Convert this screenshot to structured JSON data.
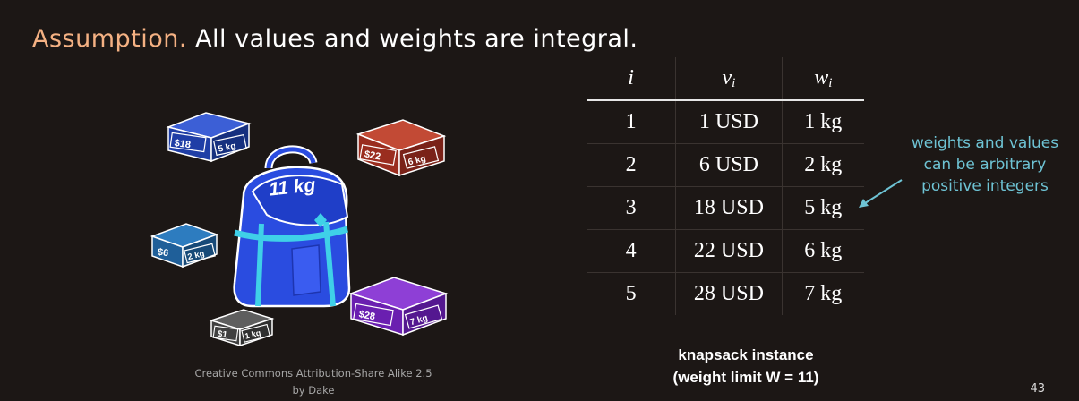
{
  "heading": {
    "label": "Assumption.",
    "text": "All values and weights are integral."
  },
  "illustration": {
    "backpack_label": "11 kg",
    "boxes": [
      {
        "value": "$18",
        "weight": "5 kg",
        "color": "#1f3ea6"
      },
      {
        "value": "$22",
        "weight": "6 kg",
        "color": "#9a2d1f"
      },
      {
        "value": "$6",
        "weight": "2 kg",
        "color": "#1f5f99"
      },
      {
        "value": "$28",
        "weight": "7 kg",
        "color": "#6a1fb0"
      },
      {
        "value": "$1",
        "weight": "1 kg",
        "color": "#404040"
      }
    ],
    "credit_line1": "Creative Commons Attribution-Share Alike 2.5",
    "credit_line2": "by Dake"
  },
  "table": {
    "headers": {
      "i": "i",
      "v": "v",
      "v_sub": "i",
      "w": "w",
      "w_sub": "i"
    },
    "rows": [
      {
        "i": "1",
        "v": "1 USD",
        "w": "1 kg"
      },
      {
        "i": "2",
        "v": "6 USD",
        "w": "2 kg"
      },
      {
        "i": "3",
        "v": "18 USD",
        "w": "5 kg"
      },
      {
        "i": "4",
        "v": "22 USD",
        "w": "6 kg"
      },
      {
        "i": "5",
        "v": "28 USD",
        "w": "7 kg"
      }
    ]
  },
  "caption": {
    "line1": "knapsack instance",
    "line2": "(weight limit W = 11)"
  },
  "note": {
    "line1": "weights and values",
    "line2": "can be arbitrary",
    "line3": "positive integers",
    "color": "#6ec3d4"
  },
  "page_number": "43"
}
